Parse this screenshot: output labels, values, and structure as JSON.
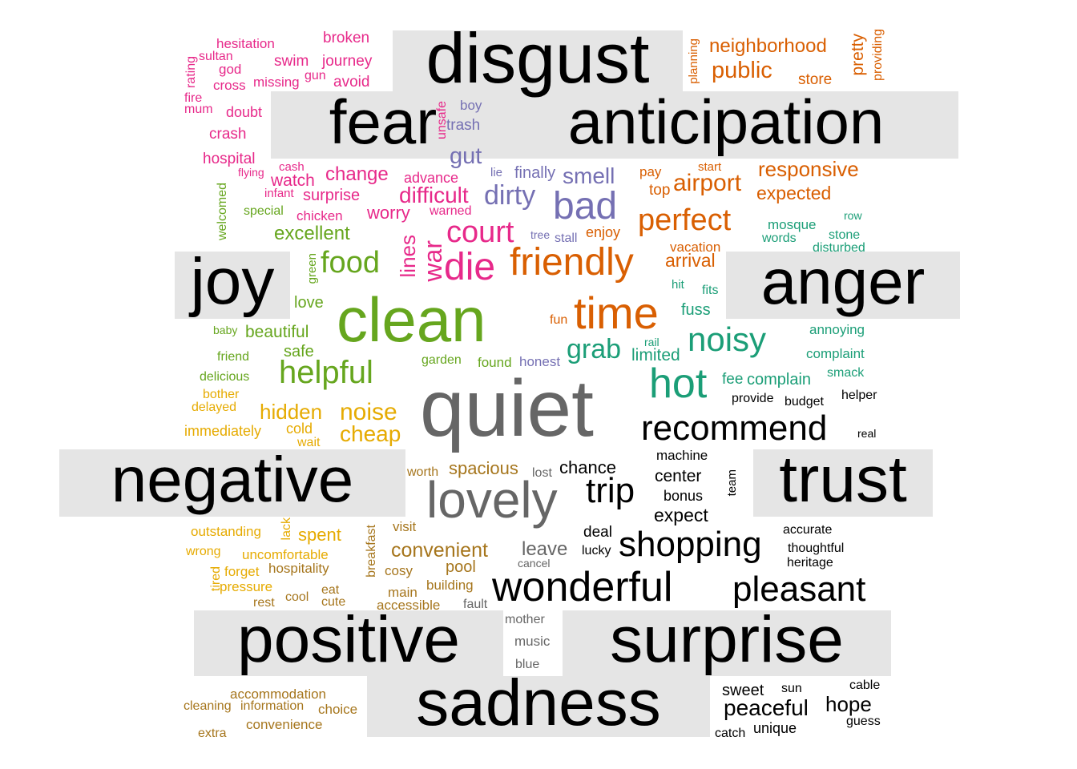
{
  "chart_data": {
    "type": "wordcloud",
    "categories": [
      {
        "name": "anger",
        "color": "#000000"
      },
      {
        "name": "anticipation",
        "color": "#000000"
      },
      {
        "name": "disgust",
        "color": "#000000"
      },
      {
        "name": "fear",
        "color": "#000000"
      },
      {
        "name": "joy",
        "color": "#000000"
      },
      {
        "name": "negative",
        "color": "#000000"
      },
      {
        "name": "positive",
        "color": "#000000"
      },
      {
        "name": "sadness",
        "color": "#000000"
      },
      {
        "name": "surprise",
        "color": "#000000"
      },
      {
        "name": "trust",
        "color": "#000000"
      }
    ],
    "groups": [
      {
        "color": "#e7298a",
        "words": [
          "rating",
          "sultan",
          "hesitation",
          "god",
          "cross",
          "missing",
          "gun",
          "broken",
          "swim",
          "journey",
          "avoid",
          "fire",
          "mum",
          "doubt",
          "crash",
          "hospital",
          "flying",
          "cash",
          "watch",
          "infant",
          "surprise",
          "chicken",
          "change",
          "advance",
          "difficult",
          "warned",
          "worry",
          "court",
          "die",
          "war",
          "lines",
          "unsafe"
        ]
      },
      {
        "color": "#7570b3",
        "words": [
          "boy",
          "trash",
          "gut",
          "lie",
          "finally",
          "smell",
          "dirty",
          "bad",
          "tree",
          "stall",
          "honest"
        ]
      },
      {
        "color": "#d95f02",
        "words": [
          "neighborhood",
          "public",
          "store",
          "pretty",
          "providing",
          "planning",
          "pay",
          "start",
          "top",
          "airport",
          "responsive",
          "expected",
          "perfect",
          "enjoy",
          "friendly",
          "vacation",
          "arrival",
          "time",
          "fun"
        ]
      },
      {
        "color": "#1b9e77",
        "words": [
          "mosque",
          "words",
          "row",
          "stone",
          "disturbed",
          "hit",
          "fits",
          "fuss",
          "annoying",
          "complaint",
          "smack",
          "noisy",
          "grab",
          "rail",
          "limited",
          "hot",
          "fee",
          "complain"
        ]
      },
      {
        "color": "#66a61e",
        "words": [
          "welcomed",
          "special",
          "excellent",
          "green",
          "food",
          "love",
          "baby",
          "beautiful",
          "friend",
          "safe",
          "helpful",
          "delicious",
          "garden",
          "found",
          "clean"
        ]
      },
      {
        "color": "#e6ab02",
        "words": [
          "bother",
          "delayed",
          "hidden",
          "noise",
          "immediately",
          "cold",
          "cheap",
          "wait",
          "outstanding",
          "lack",
          "spent",
          "wrong",
          "uncomfortable",
          "tired",
          "forget",
          "pressure"
        ]
      },
      {
        "color": "#a6761d",
        "words": [
          "worth",
          "spacious",
          "visit",
          "convenient",
          "breakfast",
          "hospitality",
          "pool",
          "cosy",
          "building",
          "eat",
          "main",
          "rest",
          "cool",
          "cute",
          "accessible",
          "accommodation",
          "cleaning",
          "information",
          "choice",
          "convenience",
          "extra"
        ]
      },
      {
        "color": "#666666",
        "words": [
          "quiet",
          "lovely",
          "lost",
          "leave",
          "cancel",
          "fault",
          "mother",
          "music",
          "blue"
        ]
      },
      {
        "color": "#000000",
        "words": [
          "recommend",
          "provide",
          "budget",
          "helper",
          "real",
          "chance",
          "machine",
          "center",
          "trip",
          "bonus",
          "team",
          "expect",
          "deal",
          "shopping",
          "lucky",
          "accurate",
          "thoughtful",
          "heritage",
          "wonderful",
          "pleasant",
          "sweet",
          "sun",
          "cable",
          "peaceful",
          "hope",
          "catch",
          "unique",
          "guess"
        ]
      }
    ]
  }
}
